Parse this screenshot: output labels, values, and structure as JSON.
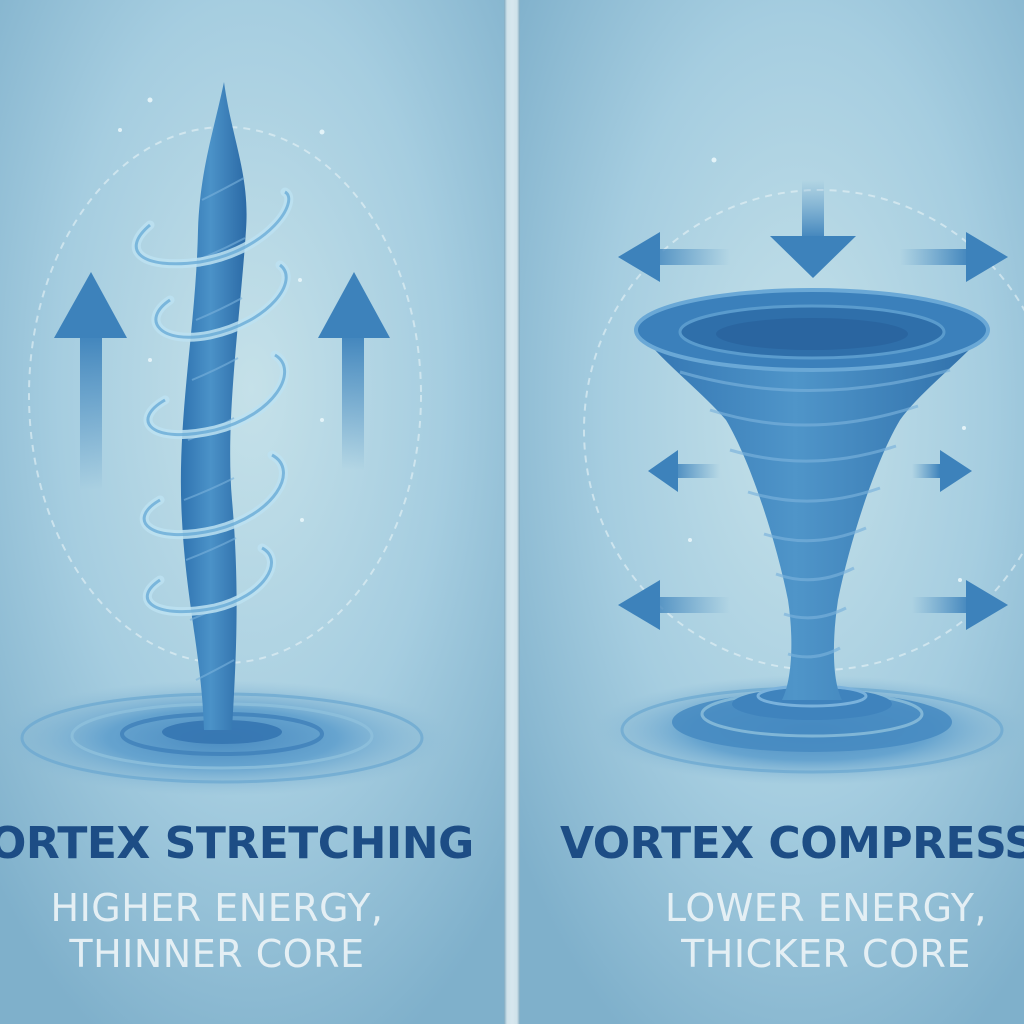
{
  "left_panel": {
    "title": "VORTEX STRETCHING",
    "subtitle_line1": "HIGHER ENERGY,",
    "subtitle_line2": "THINNER CORE"
  },
  "right_panel": {
    "title": "VORTEX COMPRESSION",
    "subtitle_line1": "LOWER ENERGY,",
    "subtitle_line2": "THICKER CORE"
  },
  "colors": {
    "title": "#1d4d85",
    "subtitle": "#e4eff4",
    "vortex": "#3f88c0",
    "background": "#9cc6d8"
  }
}
